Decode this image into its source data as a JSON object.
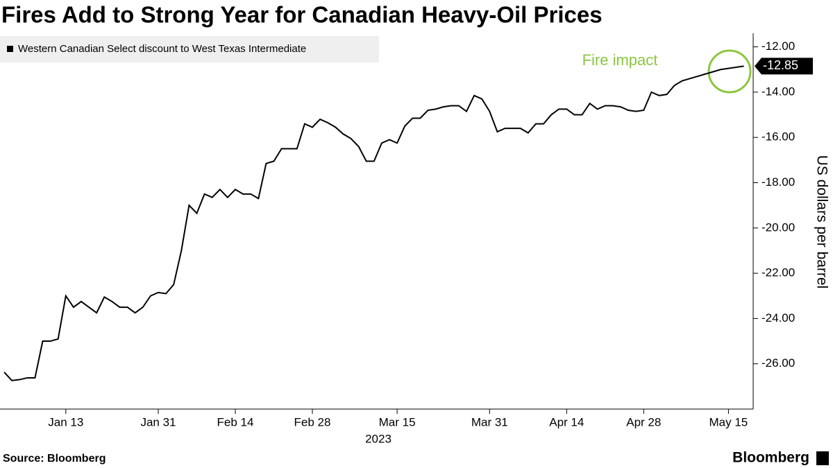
{
  "chart_data": {
    "type": "line",
    "title": "Fires Add to Strong Year for Canadian Heavy-Oil Prices",
    "categories": [
      null,
      null,
      null,
      null,
      null,
      null,
      null,
      null,
      "Jan 13",
      null,
      null,
      null,
      null,
      null,
      null,
      null,
      null,
      null,
      null,
      null,
      "Jan 31",
      null,
      null,
      null,
      null,
      null,
      null,
      null,
      null,
      null,
      "Feb 14",
      null,
      null,
      null,
      null,
      null,
      null,
      null,
      null,
      null,
      "Feb 28",
      null,
      null,
      null,
      null,
      null,
      null,
      null,
      null,
      null,
      null,
      "Mar 15",
      null,
      null,
      null,
      null,
      null,
      null,
      null,
      null,
      null,
      null,
      null,
      "Mar 31",
      null,
      null,
      null,
      null,
      null,
      null,
      null,
      null,
      null,
      "Apr 14",
      null,
      null,
      null,
      null,
      null,
      null,
      null,
      null,
      null,
      "Apr 28",
      null,
      null,
      null,
      null,
      null,
      null,
      null,
      null,
      null,
      null,
      "May 15",
      null,
      null
    ],
    "xlabel": "2023",
    "series": [
      {
        "name": "Western Canadian Select discount to West Texas Intermediate",
        "color": "#000000",
        "values": [
          -26.37,
          -26.74,
          -26.7,
          -26.62,
          -26.62,
          -25.0,
          -25.0,
          -24.9,
          -23.0,
          -23.5,
          -23.25,
          -23.5,
          -23.75,
          -23.05,
          -23.25,
          -23.5,
          -23.5,
          -23.75,
          -23.5,
          -23.0,
          -22.85,
          -22.9,
          -22.5,
          -21.0,
          -19.0,
          -19.35,
          -18.5,
          -18.65,
          -18.3,
          -18.65,
          -18.3,
          -18.5,
          -18.5,
          -18.7,
          -17.15,
          -17.05,
          -16.5,
          -16.5,
          -16.5,
          -15.4,
          -15.55,
          -15.2,
          -15.35,
          -15.55,
          -15.85,
          -16.05,
          -16.4,
          -17.05,
          -17.05,
          -16.25,
          -16.1,
          -16.25,
          -15.5,
          -15.15,
          -15.15,
          -14.8,
          -14.75,
          -14.65,
          -14.6,
          -14.6,
          -14.85,
          -14.15,
          -14.3,
          -14.85,
          -15.75,
          -15.6,
          -15.6,
          -15.6,
          -15.8,
          -15.4,
          -15.4,
          -15.0,
          -14.75,
          -14.75,
          -15.0,
          -15.0,
          -14.5,
          -14.75,
          -14.6,
          -14.6,
          -14.65,
          -14.8,
          -14.85,
          -14.8,
          -14.0,
          -14.15,
          -14.1,
          -13.7,
          -13.5,
          -13.4,
          -13.3,
          -13.2,
          -13.1,
          -13.0,
          -12.95,
          -12.9,
          -12.85
        ]
      }
    ],
    "ylabel": "US dollars per barrel",
    "ylim": [
      -28.0,
      -11.4
    ],
    "yticks": [
      {
        "value": -12,
        "label": "-12.00"
      },
      {
        "value": -14,
        "label": "-14.00"
      },
      {
        "value": -16,
        "label": "-16.00"
      },
      {
        "value": -18,
        "label": "-18.00"
      },
      {
        "value": -20,
        "label": "-20.00"
      },
      {
        "value": -22,
        "label": "-22.00"
      },
      {
        "value": -24,
        "label": "-24.00"
      },
      {
        "value": -26,
        "label": "-26.00"
      }
    ],
    "annotation": "Fire impact",
    "source": "Source: Bloomberg",
    "brand": "Bloomberg"
  }
}
